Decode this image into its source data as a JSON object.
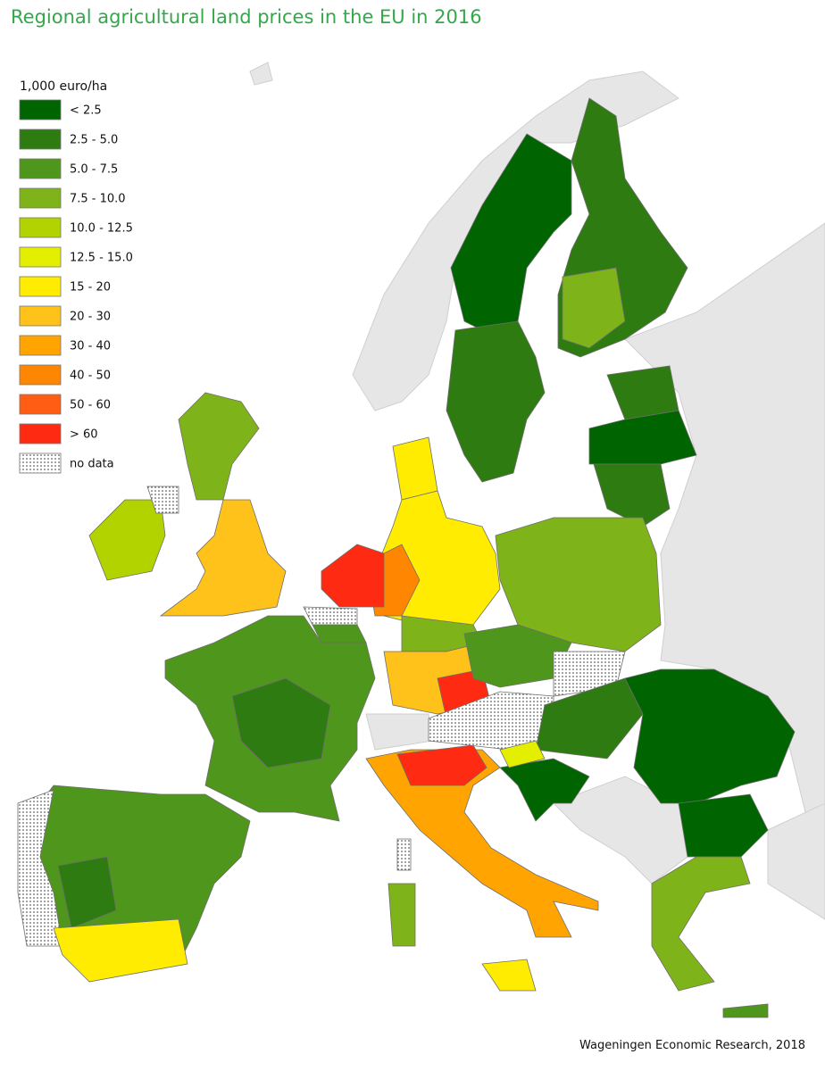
{
  "title": "Regional agricultural land prices in the EU in 2016",
  "legend": {
    "title": "1,000 euro/ha",
    "items": [
      {
        "label": "< 2.5",
        "color": "#006400"
      },
      {
        "label": "2.5 - 5.0",
        "color": "#2e7b12"
      },
      {
        "label": "5.0 - 7.5",
        "color": "#4f961c"
      },
      {
        "label": "7.5 - 10.0",
        "color": "#7fb31a"
      },
      {
        "label": "10.0 - 12.5",
        "color": "#b3d300"
      },
      {
        "label": "12.5 - 15.0",
        "color": "#e4ef00"
      },
      {
        "label": "15 - 20",
        "color": "#ffec00"
      },
      {
        "label": "20 - 30",
        "color": "#ffc21a"
      },
      {
        "label": "30 - 40",
        "color": "#ffa400"
      },
      {
        "label": "40 - 50",
        "color": "#ff8600"
      },
      {
        "label": "50 - 60",
        "color": "#ff5c14"
      },
      {
        "label": "> 60",
        "color": "#ff2a12"
      },
      {
        "label": "no data",
        "pattern": "dots"
      }
    ]
  },
  "credit": "Wageningen Economic Research, 2018"
}
